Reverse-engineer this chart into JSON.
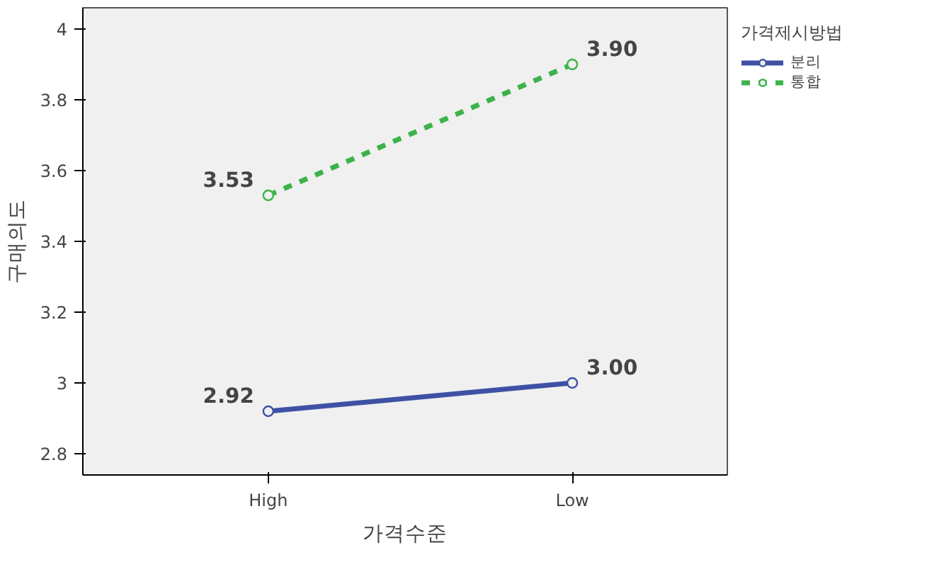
{
  "chart_data": {
    "type": "line",
    "xlabel": "가격수준",
    "ylabel": "구매의도",
    "legend_title": "가격제시방법",
    "categories": [
      "High",
      "Low"
    ],
    "series": [
      {
        "name": "분리",
        "color": "#3f51a5",
        "values": [
          2.92,
          3.0
        ],
        "value_labels": [
          "2.92",
          "3.00"
        ],
        "line_style": "solid"
      },
      {
        "name": "통합",
        "color": "#3cb34a",
        "values": [
          3.53,
          3.9
        ],
        "value_labels": [
          "3.53",
          "3.90"
        ],
        "line_style": "dashed"
      }
    ],
    "ylim": [
      2.74,
      4.06
    ],
    "yticks": [
      2.8,
      3,
      3.2,
      3.4,
      3.6,
      3.8,
      4
    ],
    "grid": false,
    "legend": "right",
    "marker": "circle"
  }
}
